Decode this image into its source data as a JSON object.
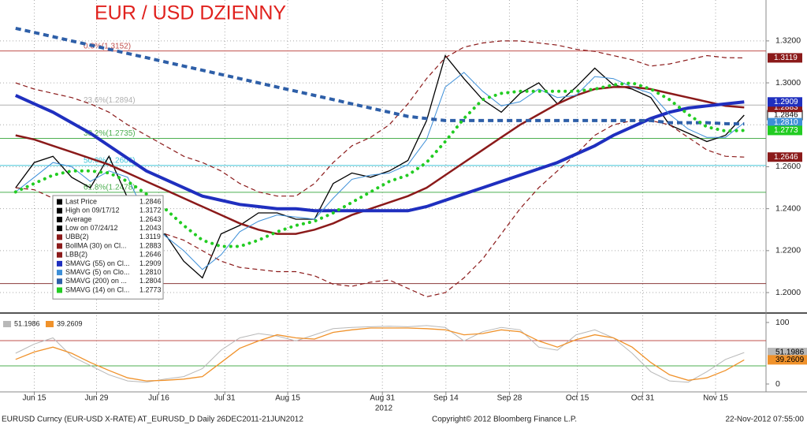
{
  "chart_data": [
    {
      "type": "line",
      "title": "EUR / USD DZIENNY",
      "x_year_label": "2012",
      "x": [
        -3,
        0,
        3,
        6,
        9,
        12,
        15,
        18,
        21,
        24,
        27,
        30,
        33,
        36,
        39,
        42,
        45,
        48,
        51,
        54,
        57,
        60,
        63,
        66,
        69,
        72,
        75,
        78,
        81,
        84,
        87,
        90,
        93,
        96,
        99,
        102,
        105,
        108,
        111,
        114
      ],
      "xlim": [
        -5.5,
        117.5
      ],
      "xticks": [
        {
          "value": 0,
          "label": "Jun 15"
        },
        {
          "value": 10,
          "label": "Jun 29"
        },
        {
          "value": 20,
          "label": "Jul 16"
        },
        {
          "value": 30.6,
          "label": "Jul 31"
        },
        {
          "value": 40.7,
          "label": "Aug 15"
        },
        {
          "value": 55.9,
          "label": "Aug 31"
        },
        {
          "value": 66.1,
          "label": "Sep 14"
        },
        {
          "value": 76.3,
          "label": "Sep 28"
        },
        {
          "value": 87.2,
          "label": "Oct 15"
        },
        {
          "value": 97.7,
          "label": "Oct 31"
        },
        {
          "value": 109.4,
          "label": "Nov 15"
        }
      ],
      "ylim": [
        1.191,
        1.3395
      ],
      "yticks": [
        {
          "value": 1.2,
          "label": "1.2000"
        },
        {
          "value": 1.22,
          "label": "1.2200"
        },
        {
          "value": 1.24,
          "label": "1.2400"
        },
        {
          "value": 1.26,
          "label": "1.2600"
        },
        {
          "value": 1.28,
          "label": "1.2800"
        },
        {
          "value": 1.3,
          "label": "1.3000"
        },
        {
          "value": 1.32,
          "label": "1.3200"
        }
      ],
      "grid": true,
      "fib_levels": [
        {
          "label": "0.0%(1.3152)",
          "value": 1.3152,
          "color": "#c0504d"
        },
        {
          "label": "23.6%(1.2894)",
          "value": 1.2894,
          "color": "#b0b0b0"
        },
        {
          "label": "38.2%(1.2735)",
          "value": 1.2735,
          "color": "#4caf50"
        },
        {
          "label": "50.0%(1.2606)",
          "value": 1.2606,
          "color": "#40c4d8"
        },
        {
          "label": "61.8%(1.2478)",
          "value": 1.2478,
          "color": "#4caf50"
        },
        {
          "value": 1.2043,
          "color": "#8b3a3a"
        }
      ],
      "stats": [
        {
          "label": "High on 09/17/12",
          "value": 1.3172
        },
        {
          "label": "Average",
          "value": 1.2643
        },
        {
          "label": "Low on 07/24/12",
          "value": 1.2043
        }
      ],
      "series": [
        {
          "name": "Last Price",
          "color": "#000000",
          "style": "solid",
          "width": 1.3,
          "last_label": "1.2846",
          "right_tag": true,
          "values": [
            1.25,
            1.262,
            1.265,
            1.255,
            1.25,
            1.265,
            1.245,
            1.225,
            1.228,
            1.215,
            1.207,
            1.228,
            1.232,
            1.238,
            1.238,
            1.235,
            1.235,
            1.252,
            1.257,
            1.255,
            1.258,
            1.263,
            1.282,
            1.313,
            1.302,
            1.292,
            1.286,
            1.295,
            1.3,
            1.29,
            1.298,
            1.307,
            1.299,
            1.297,
            1.293,
            1.28,
            1.276,
            1.272,
            1.275,
            1.2846
          ]
        },
        {
          "name": "UBB(2)",
          "color": "#8b1a1a",
          "style": "dashed",
          "width": 1.2,
          "last_label": "1.3119",
          "right_tag": true,
          "values": [
            1.3,
            1.297,
            1.295,
            1.293,
            1.29,
            1.286,
            1.28,
            1.275,
            1.27,
            1.265,
            1.262,
            1.258,
            1.252,
            1.248,
            1.246,
            1.246,
            1.252,
            1.262,
            1.27,
            1.274,
            1.28,
            1.29,
            1.302,
            1.312,
            1.317,
            1.319,
            1.32,
            1.32,
            1.319,
            1.318,
            1.316,
            1.315,
            1.313,
            1.311,
            1.308,
            1.309,
            1.311,
            1.313,
            1.312,
            1.3119
          ]
        },
        {
          "name": "BollMA (30) on Cl...",
          "color": "#8b1a1a",
          "style": "solid",
          "width": 2.5,
          "last_label": "1.2883",
          "right_tag": true,
          "values": [
            1.275,
            1.273,
            1.27,
            1.267,
            1.264,
            1.261,
            1.257,
            1.253,
            1.249,
            1.245,
            1.241,
            1.237,
            1.233,
            1.23,
            1.228,
            1.228,
            1.23,
            1.233,
            1.237,
            1.24,
            1.243,
            1.246,
            1.25,
            1.256,
            1.262,
            1.268,
            1.274,
            1.28,
            1.285,
            1.29,
            1.294,
            1.297,
            1.298,
            1.298,
            1.297,
            1.295,
            1.293,
            1.291,
            1.289,
            1.2883
          ]
        },
        {
          "name": "LBB(2)",
          "color": "#8b1a1a",
          "style": "dashed",
          "width": 1.2,
          "last_label": "1.2646",
          "right_tag": true,
          "values": [
            1.25,
            1.249,
            1.245,
            1.241,
            1.238,
            1.236,
            1.234,
            1.231,
            1.228,
            1.225,
            1.22,
            1.215,
            1.212,
            1.211,
            1.21,
            1.21,
            1.208,
            1.204,
            1.203,
            1.205,
            1.206,
            1.202,
            1.198,
            1.2,
            1.207,
            1.216,
            1.228,
            1.24,
            1.25,
            1.258,
            1.266,
            1.275,
            1.28,
            1.282,
            1.282,
            1.28,
            1.274,
            1.268,
            1.265,
            1.2646
          ]
        },
        {
          "name": "SMAVG (55) on Cl...",
          "color": "#1f2fbf",
          "style": "solid",
          "width": 4,
          "last_label": "1.2909",
          "right_tag": true,
          "values": [
            1.294,
            1.29,
            1.286,
            1.281,
            1.276,
            1.27,
            1.264,
            1.258,
            1.254,
            1.25,
            1.246,
            1.244,
            1.242,
            1.241,
            1.24,
            1.24,
            1.239,
            1.239,
            1.239,
            1.239,
            1.239,
            1.239,
            1.241,
            1.244,
            1.247,
            1.25,
            1.253,
            1.256,
            1.259,
            1.262,
            1.266,
            1.27,
            1.275,
            1.279,
            1.283,
            1.286,
            1.288,
            1.289,
            1.29,
            1.2909
          ]
        },
        {
          "name": "SMAVG (5) on Clo...",
          "color": "#3d8fd8",
          "style": "solid",
          "width": 1,
          "last_label": "1.2810",
          "right_tag": true,
          "values": [
            1.248,
            1.255,
            1.262,
            1.26,
            1.253,
            1.258,
            1.255,
            1.236,
            1.227,
            1.22,
            1.211,
            1.218,
            1.229,
            1.234,
            1.237,
            1.236,
            1.235,
            1.245,
            1.254,
            1.256,
            1.257,
            1.261,
            1.273,
            1.298,
            1.305,
            1.296,
            1.289,
            1.291,
            1.297,
            1.293,
            1.294,
            1.303,
            1.302,
            1.298,
            1.295,
            1.285,
            1.278,
            1.274,
            1.274,
            1.281
          ]
        },
        {
          "name": "SMAVG (200) on ...",
          "color": "#2e5fa8",
          "style": "dotted",
          "width": 4,
          "last_label": "1.2804",
          "right_tag": false,
          "values": [
            1.326,
            1.324,
            1.322,
            1.32,
            1.318,
            1.316,
            1.314,
            1.312,
            1.31,
            1.308,
            1.306,
            1.304,
            1.302,
            1.3,
            1.298,
            1.296,
            1.294,
            1.292,
            1.29,
            1.288,
            1.286,
            1.284,
            1.283,
            1.282,
            1.282,
            1.282,
            1.282,
            1.282,
            1.282,
            1.282,
            1.282,
            1.282,
            1.282,
            1.282,
            1.282,
            1.281,
            1.281,
            1.281,
            1.2805,
            1.2804
          ]
        },
        {
          "name": "SMAVG (14) on Cl...",
          "color": "#22cc22",
          "style": "dots",
          "width": 4,
          "last_label": "1.2773",
          "right_tag": true,
          "values": [
            1.248,
            1.252,
            1.256,
            1.258,
            1.258,
            1.257,
            1.253,
            1.247,
            1.24,
            1.232,
            1.225,
            1.222,
            1.222,
            1.225,
            1.229,
            1.232,
            1.234,
            1.238,
            1.243,
            1.248,
            1.253,
            1.256,
            1.262,
            1.272,
            1.283,
            1.292,
            1.295,
            1.296,
            1.296,
            1.296,
            1.296,
            1.297,
            1.299,
            1.3,
            1.297,
            1.292,
            1.285,
            1.279,
            1.277,
            1.2773
          ]
        }
      ]
    },
    {
      "type": "line",
      "x": [
        -3,
        0,
        3,
        6,
        9,
        12,
        15,
        18,
        21,
        24,
        27,
        30,
        33,
        36,
        39,
        42,
        45,
        48,
        51,
        54,
        57,
        60,
        63,
        66,
        69,
        72,
        75,
        78,
        81,
        84,
        87,
        90,
        93,
        96,
        99,
        102,
        105,
        108,
        111,
        114
      ],
      "xlim": [
        -5.5,
        117.5
      ],
      "ylim": [
        -12.8,
        111.5
      ],
      "yticks": [
        0,
        100
      ],
      "ref_lines": [
        {
          "value": 70.5,
          "color": "#c0504d"
        },
        {
          "value": 29.5,
          "color": "#4caf50"
        }
      ],
      "series": [
        {
          "name": "51.1986",
          "color": "#b8b8b8",
          "width": 1,
          "values": [
            50,
            65,
            75,
            45,
            30,
            15,
            5,
            3,
            8,
            12,
            25,
            55,
            75,
            82,
            78,
            70,
            80,
            90,
            92,
            93,
            94,
            93,
            95,
            92,
            70,
            85,
            92,
            88,
            60,
            55,
            80,
            88,
            75,
            50,
            20,
            5,
            3,
            20,
            40,
            51.1986
          ]
        },
        {
          "name": "39.2609",
          "color": "#f0922b",
          "width": 1.3,
          "values": [
            40,
            52,
            60,
            50,
            35,
            22,
            10,
            5,
            6,
            8,
            12,
            35,
            58,
            70,
            80,
            75,
            73,
            84,
            88,
            91,
            91,
            91,
            90,
            88,
            80,
            82,
            88,
            85,
            70,
            60,
            72,
            80,
            75,
            60,
            35,
            15,
            6,
            10,
            22,
            39.2609
          ]
        }
      ]
    }
  ],
  "footer": {
    "left": "EURUSD Curncy (EUR-USD X-RATE) AT_EURUSD_D  Daily 26DEC2011-21JUN2012",
    "center": "Copyright© 2012 Bloomberg Finance L.P.",
    "right": "22-Nov-2012 07:55:00"
  }
}
